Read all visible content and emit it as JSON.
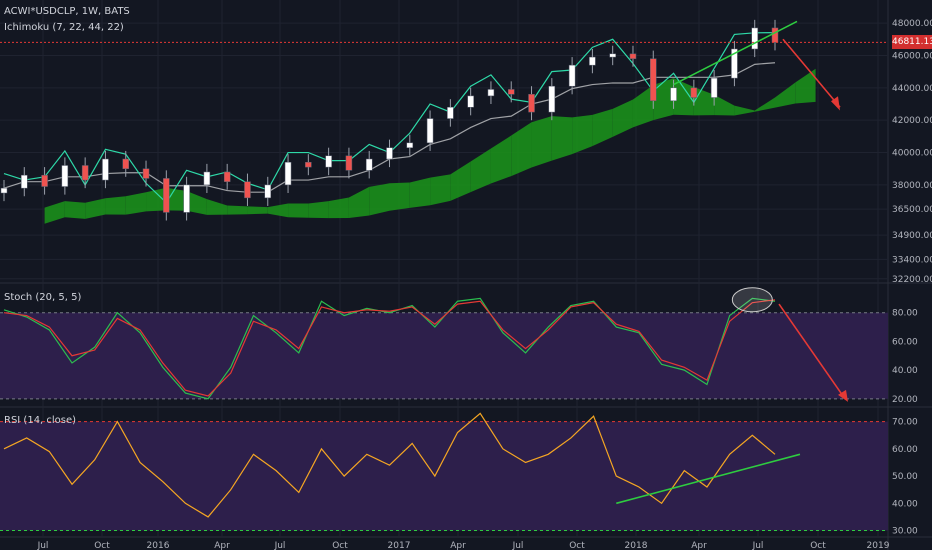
{
  "header": {
    "symbol_line": "ACWI*USDCLP, 1W, BATS",
    "indicator_line": "Ichimoku (7, 22, 44, 22)"
  },
  "panes": {
    "stoch": {
      "title": "Stoch (20, 5, 5)"
    },
    "rsi": {
      "title": "RSI (14, close)"
    }
  },
  "last_price": "46811.13",
  "colors": {
    "background": "#131722",
    "up_candle": "#ffffff",
    "down_candle": "#ef5350",
    "tenkan": "#2ed9a8",
    "kijun": "#ffffff",
    "cloud_bull": "#1b8f1b",
    "cloud_bear": "#b71c1c",
    "stoch_k": "#2bbf4f",
    "stoch_d": "#e53935",
    "rsi_line": "#f5a623",
    "band_fill": "#2d1f4b",
    "annotation_arrow": "#e53935",
    "trendline": "#2ecc40"
  },
  "chart_data": [
    {
      "type": "candlestick",
      "title": "ACWI*USDCLP, 1W, BATS",
      "x_ticks": [
        "Jul",
        "Oct",
        "2016",
        "Apr",
        "Jul",
        "Oct",
        "2017",
        "Apr",
        "Jul",
        "Oct",
        "2018",
        "Apr",
        "Jul",
        "Oct",
        "2019"
      ],
      "y_ticks": [
        48000,
        46000,
        44000,
        42000,
        40000,
        38000,
        36500,
        34900,
        33400,
        32200
      ],
      "ylim": [
        32000,
        48500
      ],
      "last_value": 46811.13,
      "close_series": [
        [
          "2015-06",
          37800
        ],
        [
          "2015-07",
          38600
        ],
        [
          "2015-08",
          37900
        ],
        [
          "2015-09",
          39200
        ],
        [
          "2015-10",
          38300
        ],
        [
          "2015-11",
          39600
        ],
        [
          "2015-12",
          39000
        ],
        [
          "2016-01",
          38400
        ],
        [
          "2016-02",
          36300
        ],
        [
          "2016-03",
          38000
        ],
        [
          "2016-04",
          38800
        ],
        [
          "2016-05",
          38200
        ],
        [
          "2016-06",
          37200
        ],
        [
          "2016-07",
          38000
        ],
        [
          "2016-08",
          39400
        ],
        [
          "2016-09",
          39100
        ],
        [
          "2016-10",
          39800
        ],
        [
          "2016-11",
          38900
        ],
        [
          "2016-12",
          39600
        ],
        [
          "2017-01",
          40300
        ],
        [
          "2017-02",
          40600
        ],
        [
          "2017-03",
          42100
        ],
        [
          "2017-04",
          42800
        ],
        [
          "2017-05",
          43500
        ],
        [
          "2017-06",
          43900
        ],
        [
          "2017-07",
          43600
        ],
        [
          "2017-08",
          42500
        ],
        [
          "2017-09",
          44100
        ],
        [
          "2017-10",
          45400
        ],
        [
          "2017-11",
          45900
        ],
        [
          "2017-12",
          46100
        ],
        [
          "2018-01",
          45800
        ],
        [
          "2018-02",
          43200
        ],
        [
          "2018-03",
          44000
        ],
        [
          "2018-04",
          43400
        ],
        [
          "2018-05",
          44600
        ],
        [
          "2018-06",
          46400
        ],
        [
          "2018-07",
          47700
        ],
        [
          "2018-08",
          46811.13
        ]
      ],
      "annotations": [
        "green rising trendline under recent highs",
        "red arrow pointing down toward 43000"
      ]
    },
    {
      "type": "line",
      "title": "Stoch (20, 5, 5)",
      "y_ticks": [
        80,
        60,
        40,
        20
      ],
      "ylim": [
        15,
        100
      ],
      "band": [
        20,
        80
      ],
      "series": [
        {
          "values": [
            82,
            77,
            68,
            45,
            56,
            80,
            66,
            42,
            24,
            20,
            42,
            78,
            66,
            52,
            88,
            78,
            83,
            80,
            85,
            70,
            88,
            90,
            66,
            52,
            70,
            85,
            88,
            70,
            66,
            44,
            40,
            30,
            78,
            90,
            88
          ]
        },
        {
          "values": [
            80,
            78,
            70,
            50,
            54,
            76,
            68,
            45,
            26,
            22,
            38,
            74,
            68,
            55,
            84,
            80,
            82,
            81,
            84,
            72,
            86,
            88,
            68,
            55,
            68,
            84,
            87,
            72,
            67,
            47,
            42,
            33,
            74,
            87,
            89
          ]
        }
      ],
      "annotations": [
        "ellipse around overbought peak",
        "red arrow pointing down"
      ]
    },
    {
      "type": "line",
      "title": "RSI (14, close)",
      "y_ticks": [
        70,
        60,
        50,
        40,
        30
      ],
      "ylim": [
        28,
        75
      ],
      "band": [
        30,
        70
      ],
      "series": [
        {
          "values": [
            60,
            64,
            59,
            47,
            56,
            70,
            55,
            48,
            40,
            35,
            45,
            58,
            52,
            44,
            60,
            50,
            58,
            54,
            62,
            50,
            66,
            73,
            60,
            55,
            58,
            64,
            72,
            50,
            46,
            40,
            52,
            46,
            58,
            65,
            58
          ]
        }
      ],
      "annotations": [
        "green rising trendline under RSI lows"
      ]
    }
  ]
}
